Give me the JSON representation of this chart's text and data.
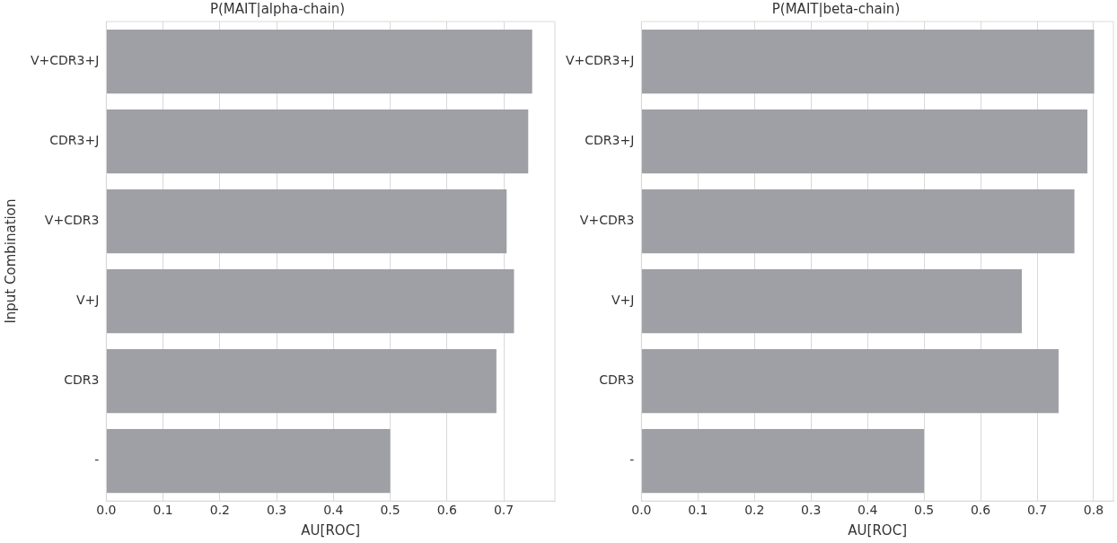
{
  "chart_data": [
    {
      "type": "bar",
      "orientation": "horizontal",
      "title": "P(MAIT|alpha-chain)",
      "xlabel": "AU[ROC]",
      "ylabel": "Input Combination",
      "categories": [
        "V+CDR3+J",
        "CDR3+J",
        "V+CDR3",
        "V+J",
        "CDR3",
        "-"
      ],
      "values": [
        0.75,
        0.743,
        0.705,
        0.718,
        0.687,
        0.5
      ],
      "color": "#9ea0a5",
      "xlim": [
        0,
        0.79
      ],
      "xticks": [
        {
          "value": 0,
          "label": "0.0"
        },
        0.1,
        0.2,
        0.3,
        0.4,
        0.5,
        0.6,
        0.7
      ],
      "grid": "x"
    },
    {
      "type": "bar",
      "orientation": "horizontal",
      "title": "P(MAIT|beta-chain)",
      "xlabel": "AU[ROC]",
      "categories": [
        "V+CDR3+J",
        "CDR3+J",
        "V+CDR3",
        "V+J",
        "CDR3",
        "-"
      ],
      "values": [
        0.801,
        0.789,
        0.766,
        0.673,
        0.738,
        0.5
      ],
      "color": "#9ea0a5",
      "xlim": [
        0,
        0.835
      ],
      "xticks": [
        {
          "value": 0,
          "label": "0.0"
        },
        0.1,
        0.2,
        0.3,
        0.4,
        0.5,
        0.6,
        0.7,
        0.8
      ],
      "grid": "x"
    }
  ]
}
